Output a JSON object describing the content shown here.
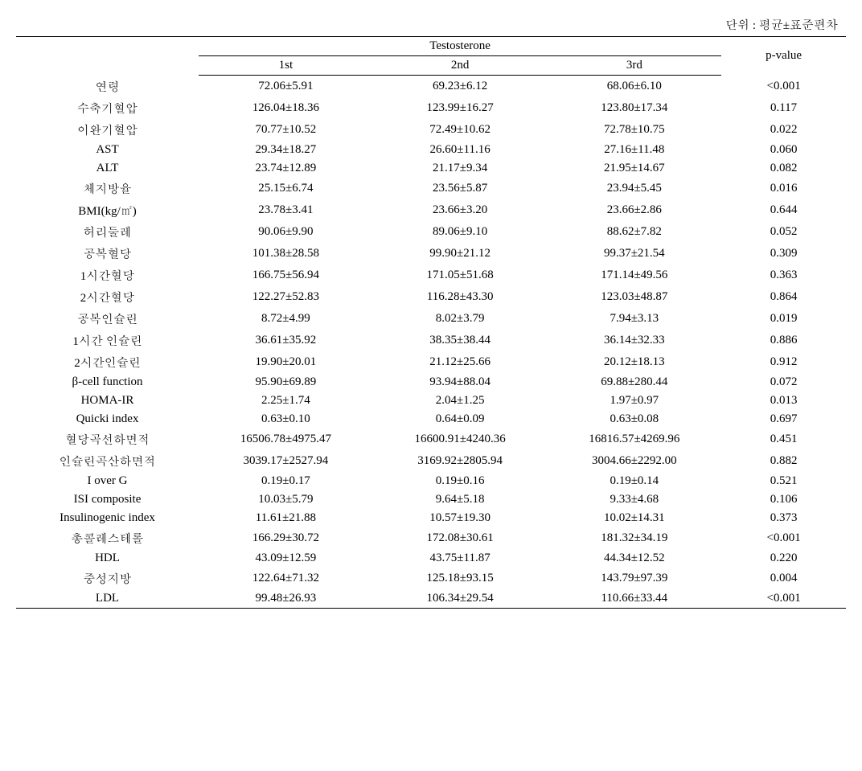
{
  "unit_text": "단위 : 평균±표준편차",
  "group_header": "Testosterone",
  "col_1st": "1st",
  "col_2nd": "2nd",
  "col_3rd": "3rd",
  "col_pvalue": "p-value",
  "rows": [
    {
      "label": "연령",
      "v1": "72.06±5.91",
      "v2": "69.23±6.12",
      "v3": "68.06±6.10",
      "p": "<0.001"
    },
    {
      "label": "수축기혈압",
      "v1": "126.04±18.36",
      "v2": "123.99±16.27",
      "v3": "123.80±17.34",
      "p": "0.117"
    },
    {
      "label": "이완기혈압",
      "v1": "70.77±10.52",
      "v2": "72.49±10.62",
      "v3": "72.78±10.75",
      "p": "0.022"
    },
    {
      "label": "AST",
      "v1": "29.34±18.27",
      "v2": "26.60±11.16",
      "v3": "27.16±11.48",
      "p": "0.060"
    },
    {
      "label": "ALT",
      "v1": "23.74±12.89",
      "v2": "21.17±9.34",
      "v3": "21.95±14.67",
      "p": "0.082"
    },
    {
      "label": "체지방율",
      "v1": "25.15±6.74",
      "v2": "23.56±5.87",
      "v3": "23.94±5.45",
      "p": "0.016"
    },
    {
      "label": "BMI(kg/㎡)",
      "v1": "23.78±3.41",
      "v2": "23.66±3.20",
      "v3": "23.66±2.86",
      "p": "0.644"
    },
    {
      "label": "허리둘레",
      "v1": "90.06±9.90",
      "v2": "89.06±9.10",
      "v3": "88.62±7.82",
      "p": "0.052"
    },
    {
      "label": "공복혈당",
      "v1": "101.38±28.58",
      "v2": "99.90±21.12",
      "v3": "99.37±21.54",
      "p": "0.309"
    },
    {
      "label": "1시간혈당",
      "v1": "166.75±56.94",
      "v2": "171.05±51.68",
      "v3": "171.14±49.56",
      "p": "0.363"
    },
    {
      "label": "2시간혈당",
      "v1": "122.27±52.83",
      "v2": "116.28±43.30",
      "v3": "123.03±48.87",
      "p": "0.864"
    },
    {
      "label": "공복인슐린",
      "v1": "8.72±4.99",
      "v2": "8.02±3.79",
      "v3": "7.94±3.13",
      "p": "0.019"
    },
    {
      "label": "1시간 인슐린",
      "v1": "36.61±35.92",
      "v2": "38.35±38.44",
      "v3": "36.14±32.33",
      "p": "0.886"
    },
    {
      "label": "2시간인슐린",
      "v1": "19.90±20.01",
      "v2": "21.12±25.66",
      "v3": "20.12±18.13",
      "p": "0.912"
    },
    {
      "label": "β-cell function",
      "v1": "95.90±69.89",
      "v2": "93.94±88.04",
      "v3": "69.88±280.44",
      "p": "0.072"
    },
    {
      "label": "HOMA-IR",
      "v1": "2.25±1.74",
      "v2": "2.04±1.25",
      "v3": "1.97±0.97",
      "p": "0.013"
    },
    {
      "label": "Quicki index",
      "v1": "0.63±0.10",
      "v2": "0.64±0.09",
      "v3": "0.63±0.08",
      "p": "0.697"
    },
    {
      "label": "혈당곡선하면적",
      "v1": "16506.78±4975.47",
      "v2": "16600.91±4240.36",
      "v3": "16816.57±4269.96",
      "p": "0.451"
    },
    {
      "label": "인슐린곡산하면적",
      "v1": "3039.17±2527.94",
      "v2": "3169.92±2805.94",
      "v3": "3004.66±2292.00",
      "p": "0.882"
    },
    {
      "label": "I over G",
      "v1": "0.19±0.17",
      "v2": "0.19±0.16",
      "v3": "0.19±0.14",
      "p": "0.521"
    },
    {
      "label": "ISI composite",
      "v1": "10.03±5.79",
      "v2": "9.64±5.18",
      "v3": "9.33±4.68",
      "p": "0.106"
    },
    {
      "label": "Insulinogenic index",
      "v1": "11.61±21.88",
      "v2": "10.57±19.30",
      "v3": "10.02±14.31",
      "p": "0.373"
    },
    {
      "label": "총콜레스테롤",
      "v1": "166.29±30.72",
      "v2": "172.08±30.61",
      "v3": "181.32±34.19",
      "p": "<0.001"
    },
    {
      "label": "HDL",
      "v1": "43.09±12.59",
      "v2": "43.75±11.87",
      "v3": "44.34±12.52",
      "p": "0.220"
    },
    {
      "label": "중성지방",
      "v1": "122.64±71.32",
      "v2": "125.18±93.15",
      "v3": "143.79±97.39",
      "p": "0.004"
    },
    {
      "label": "LDL",
      "v1": "99.48±26.93",
      "v2": "106.34±29.54",
      "v3": "110.66±33.44",
      "p": "<0.001"
    }
  ]
}
